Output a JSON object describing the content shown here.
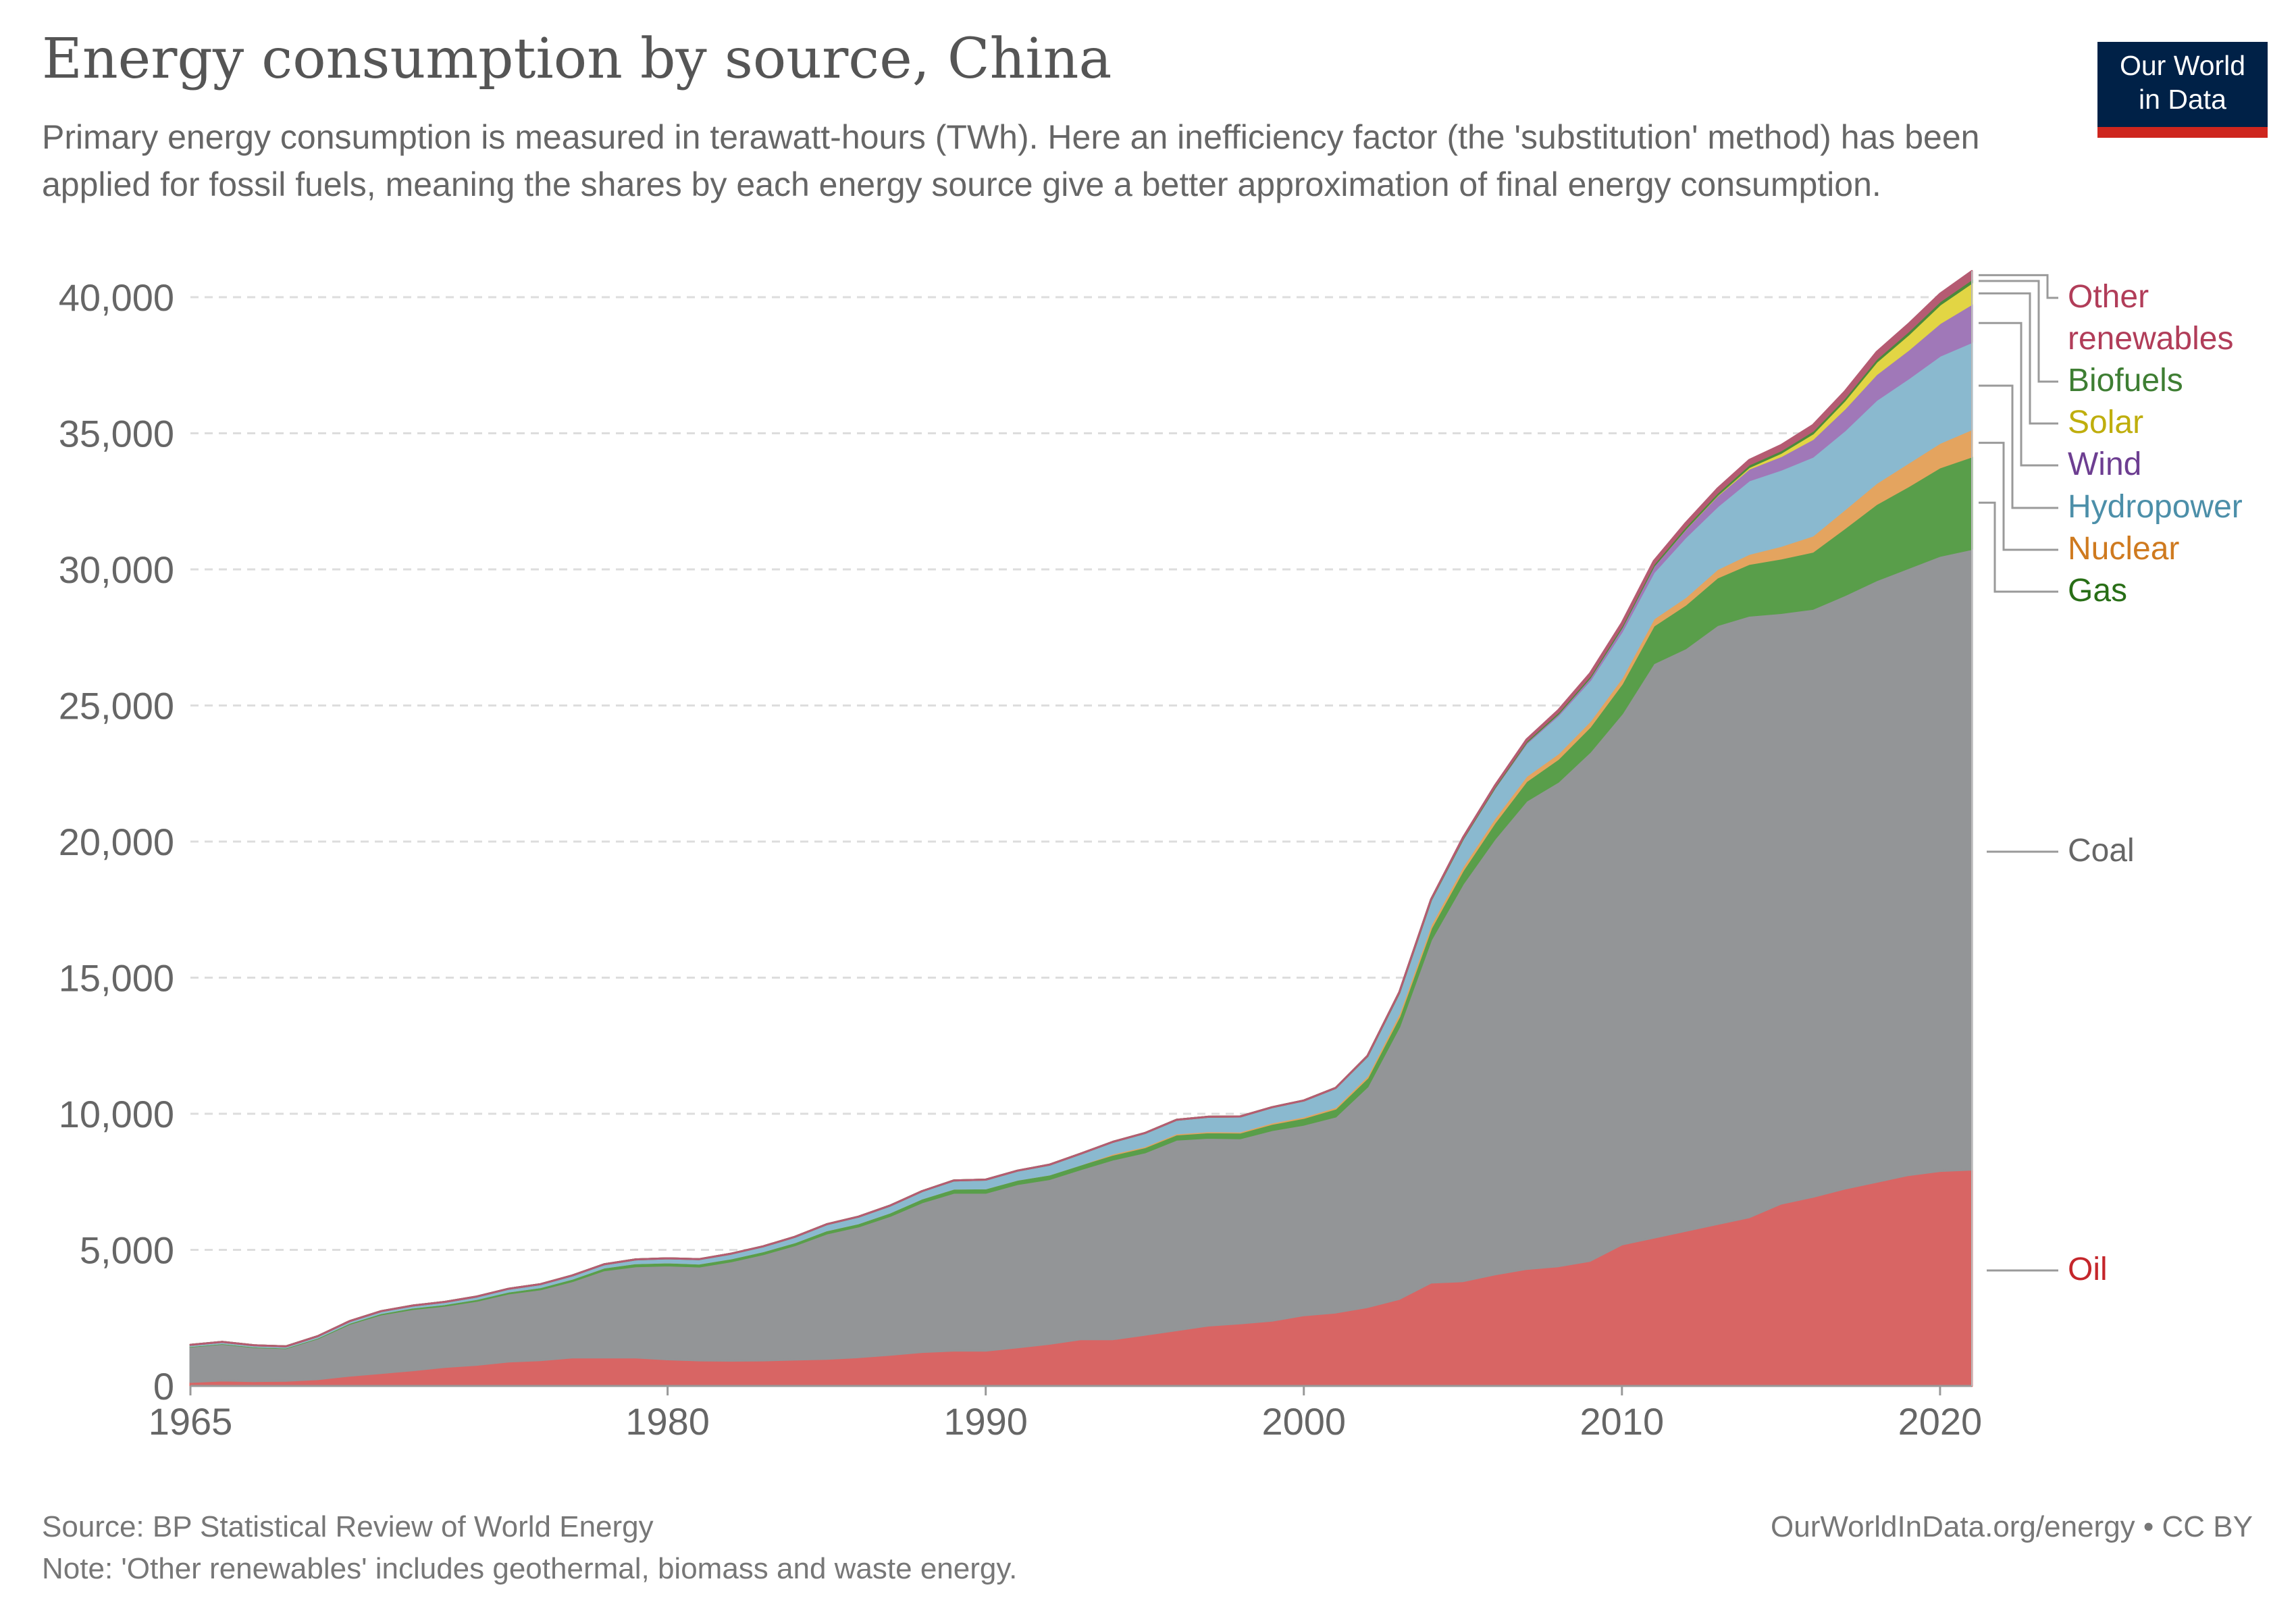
{
  "title": "Energy consumption by source, China",
  "subtitle": "Primary energy consumption is measured in terawatt-hours (TWh). Here an inefficiency factor (the 'substitution' method) has been applied for fossil fuels, meaning the shares by each energy source give a better approximation of final energy consumption.",
  "logo": {
    "line1": "Our World",
    "line2": "in Data"
  },
  "footer": {
    "source": "Source: BP Statistical Review of World Energy",
    "note": "Note: 'Other renewables' includes geothermal, biomass and waste energy.",
    "credit": "OurWorldInData.org/energy • CC BY"
  },
  "chart_data": {
    "type": "area",
    "stacked": true,
    "title": "Energy consumption by source, China",
    "xlabel": "",
    "ylabel": "",
    "xlim": [
      1965,
      2021
    ],
    "ylim": [
      0,
      40000
    ],
    "grid": true,
    "legend_placement": "right (inline labels)",
    "x_ticks": [
      1965,
      1980,
      1990,
      2000,
      2010,
      2020
    ],
    "y_ticks": [
      0,
      5000,
      10000,
      15000,
      20000,
      25000,
      30000,
      35000,
      40000
    ],
    "y_tick_labels": [
      "0",
      "5,000",
      "10,000",
      "15,000",
      "20,000",
      "25,000",
      "30,000",
      "35,000",
      "40,000"
    ],
    "x": [
      1965,
      1966,
      1967,
      1968,
      1969,
      1970,
      1971,
      1972,
      1973,
      1974,
      1975,
      1976,
      1977,
      1978,
      1979,
      1980,
      1981,
      1982,
      1983,
      1984,
      1985,
      1986,
      1987,
      1988,
      1989,
      1990,
      1991,
      1992,
      1993,
      1994,
      1995,
      1996,
      1997,
      1998,
      1999,
      2000,
      2001,
      2002,
      2003,
      2004,
      2005,
      2006,
      2007,
      2008,
      2009,
      2010,
      2011,
      2012,
      2013,
      2014,
      2015,
      2016,
      2017,
      2018,
      2019,
      2020,
      2021
    ],
    "series": [
      {
        "name": "Oil",
        "color": "#d86564",
        "label_color": "#c4262b",
        "values": [
          150,
          200,
          180,
          190,
          250,
          380,
          480,
          580,
          700,
          780,
          900,
          950,
          1050,
          1050,
          1050,
          980,
          940,
          930,
          940,
          970,
          1000,
          1060,
          1150,
          1250,
          1300,
          1300,
          1420,
          1550,
          1720,
          1720,
          1880,
          2050,
          2220,
          2300,
          2400,
          2600,
          2700,
          2900,
          3200,
          3800,
          3850,
          4100,
          4300,
          4400,
          4600,
          5200,
          5450,
          5700,
          5950,
          6200,
          6700,
          6950,
          7250,
          7500,
          7750,
          7900,
          7950
        ]
      },
      {
        "name": "Coal",
        "color": "#939597",
        "label_color": "#666666",
        "values": [
          1300,
          1350,
          1250,
          1200,
          1500,
          1900,
          2150,
          2250,
          2250,
          2350,
          2500,
          2600,
          2800,
          3200,
          3350,
          3450,
          3450,
          3650,
          3900,
          4200,
          4600,
          4800,
          5100,
          5500,
          5800,
          5800,
          6000,
          6050,
          6250,
          6600,
          6700,
          7000,
          6900,
          6800,
          7000,
          7000,
          7200,
          8100,
          10000,
          12600,
          14600,
          16000,
          17200,
          17800,
          18700,
          19500,
          21100,
          21400,
          22000,
          22100,
          21700,
          21600,
          21800,
          22100,
          22300,
          22600,
          22800
        ]
      },
      {
        "name": "Gas",
        "color": "#599e4a",
        "label_color": "#286e16",
        "values": [
          20,
          25,
          25,
          25,
          30,
          40,
          50,
          55,
          60,
          65,
          70,
          80,
          90,
          100,
          110,
          110,
          110,
          110,
          110,
          110,
          120,
          120,
          130,
          140,
          150,
          160,
          160,
          170,
          170,
          180,
          190,
          190,
          200,
          210,
          230,
          250,
          290,
          320,
          370,
          420,
          490,
          590,
          720,
          840,
          920,
          1100,
          1380,
          1600,
          1750,
          1900,
          2000,
          2100,
          2460,
          2800,
          3000,
          3250,
          3400
        ]
      },
      {
        "name": "Nuclear",
        "color": "#e4a45f",
        "label_color": "#cf7a1f",
        "values": [
          0,
          0,
          0,
          0,
          0,
          0,
          0,
          0,
          0,
          0,
          0,
          0,
          0,
          0,
          0,
          0,
          0,
          0,
          0,
          0,
          0,
          0,
          0,
          0,
          0,
          0,
          0,
          0,
          0,
          40,
          40,
          40,
          40,
          40,
          50,
          50,
          60,
          80,
          130,
          140,
          150,
          170,
          190,
          200,
          210,
          220,
          260,
          280,
          310,
          370,
          460,
          590,
          690,
          770,
          860,
          900,
          1000
        ]
      },
      {
        "name": "Hydropower",
        "color": "#8ab9cf",
        "label_color": "#4c8fa9",
        "values": [
          40,
          45,
          40,
          40,
          50,
          60,
          70,
          70,
          80,
          90,
          100,
          110,
          120,
          120,
          140,
          150,
          160,
          170,
          180,
          200,
          220,
          240,
          250,
          270,
          300,
          320,
          330,
          360,
          400,
          430,
          480,
          500,
          530,
          550,
          560,
          590,
          700,
          720,
          750,
          900,
          1000,
          1100,
          1200,
          1400,
          1500,
          1700,
          1700,
          2200,
          2300,
          2700,
          2800,
          2900,
          2900,
          3050,
          3100,
          3200,
          3200
        ]
      },
      {
        "name": "Wind",
        "color": "#a078b8",
        "label_color": "#6d3e91",
        "values": [
          0,
          0,
          0,
          0,
          0,
          0,
          0,
          0,
          0,
          0,
          0,
          0,
          0,
          0,
          0,
          0,
          0,
          0,
          0,
          0,
          0,
          0,
          0,
          0,
          0,
          0,
          0,
          0,
          0,
          0,
          0,
          0,
          0,
          0,
          0,
          0,
          0,
          0,
          0,
          0,
          10,
          20,
          40,
          60,
          100,
          150,
          230,
          300,
          400,
          430,
          500,
          650,
          800,
          950,
          1050,
          1200,
          1400
        ]
      },
      {
        "name": "Solar",
        "color": "#e2d544",
        "label_color": "#bfae0d",
        "values": [
          0,
          0,
          0,
          0,
          0,
          0,
          0,
          0,
          0,
          0,
          0,
          0,
          0,
          0,
          0,
          0,
          0,
          0,
          0,
          0,
          0,
          0,
          0,
          0,
          0,
          0,
          0,
          0,
          0,
          0,
          0,
          0,
          0,
          0,
          0,
          0,
          0,
          0,
          0,
          0,
          0,
          0,
          0,
          0,
          0,
          0,
          0,
          10,
          20,
          60,
          120,
          200,
          300,
          450,
          560,
          680,
          780
        ]
      },
      {
        "name": "Biofuels",
        "color": "#4b8a3c",
        "label_color": "#3e7e33",
        "values": [
          0,
          0,
          0,
          0,
          0,
          0,
          0,
          0,
          0,
          0,
          0,
          0,
          0,
          0,
          0,
          0,
          0,
          0,
          0,
          0,
          0,
          0,
          0,
          0,
          0,
          0,
          0,
          0,
          0,
          0,
          0,
          0,
          0,
          0,
          0,
          0,
          0,
          10,
          15,
          20,
          30,
          40,
          50,
          60,
          65,
          70,
          75,
          80,
          85,
          90,
          95,
          100,
          100,
          110,
          120,
          120,
          130
        ]
      },
      {
        "name": "Other renewables",
        "color": "#b55b72",
        "label_color": "#b13d59",
        "values": [
          0,
          0,
          0,
          0,
          0,
          0,
          0,
          0,
          0,
          0,
          0,
          0,
          0,
          0,
          0,
          0,
          0,
          0,
          0,
          0,
          0,
          0,
          0,
          0,
          0,
          0,
          0,
          0,
          0,
          0,
          0,
          0,
          0,
          0,
          0,
          0,
          0,
          0,
          0,
          0,
          20,
          30,
          50,
          70,
          90,
          100,
          110,
          130,
          150,
          170,
          190,
          210,
          230,
          250,
          270,
          280,
          300
        ]
      }
    ]
  }
}
